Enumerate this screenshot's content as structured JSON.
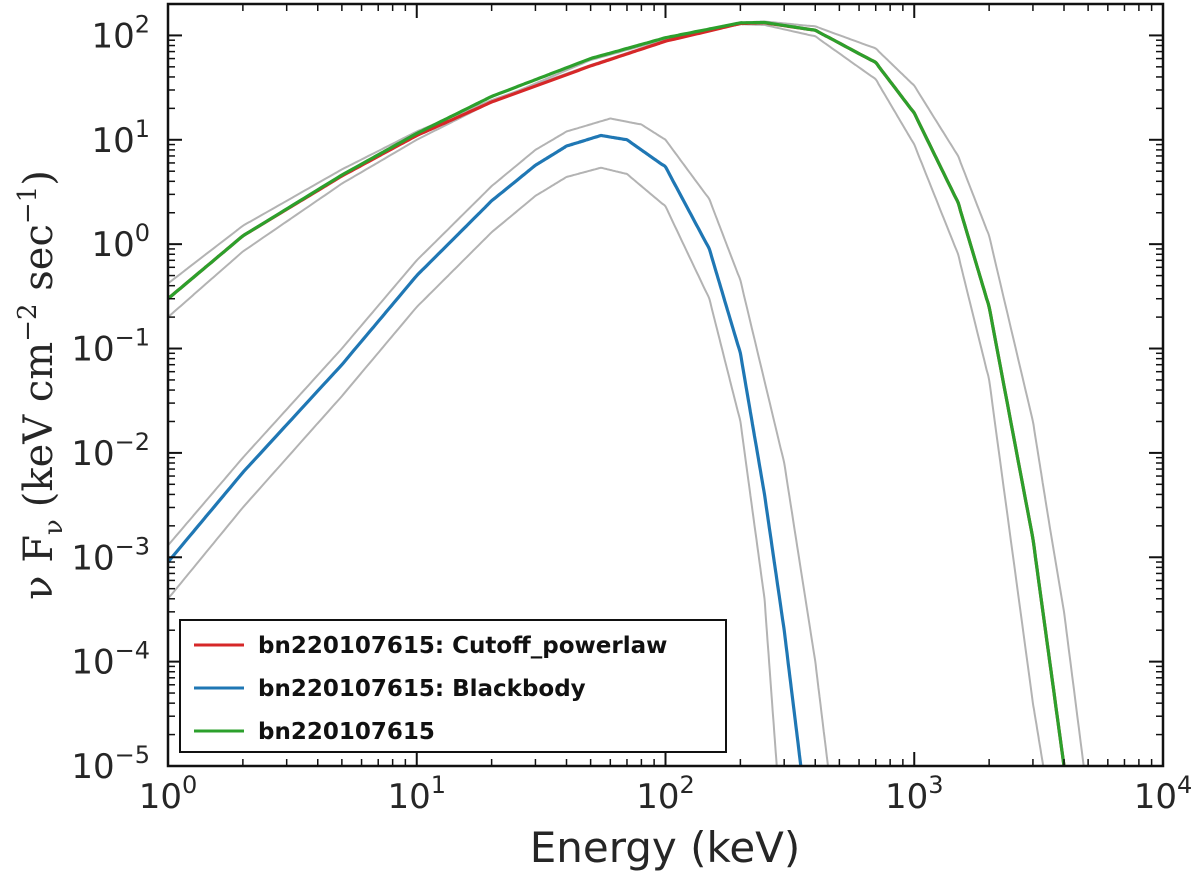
{
  "chart_data": {
    "type": "line",
    "xscale": "log",
    "yscale": "log",
    "xlim": [
      1,
      10000
    ],
    "ylim": [
      1e-05,
      200
    ],
    "xlabel": "Energy (keV)",
    "ylabel": {
      "prefix": "ν F",
      "subscript": "ν",
      "open": "(keV cm",
      "sup1": "−2",
      "mid": " sec",
      "sup2": "−1",
      "close": ")"
    },
    "x_ticks": [
      {
        "value": 1,
        "base": "10",
        "exp": "0"
      },
      {
        "value": 10,
        "base": "10",
        "exp": "1"
      },
      {
        "value": 100,
        "base": "10",
        "exp": "2"
      },
      {
        "value": 1000,
        "base": "10",
        "exp": "3"
      },
      {
        "value": 10000,
        "base": "10",
        "exp": "4"
      }
    ],
    "y_ticks": [
      {
        "value": 1e-05,
        "base": "10",
        "exp": "−5"
      },
      {
        "value": 0.0001,
        "base": "10",
        "exp": "−4"
      },
      {
        "value": 0.001,
        "base": "10",
        "exp": "−3"
      },
      {
        "value": 0.01,
        "base": "10",
        "exp": "−2"
      },
      {
        "value": 0.1,
        "base": "10",
        "exp": "−1"
      },
      {
        "value": 1,
        "base": "10",
        "exp": "0"
      },
      {
        "value": 10,
        "base": "10",
        "exp": "1"
      },
      {
        "value": 100,
        "base": "10",
        "exp": "2"
      }
    ],
    "legend_position": "bottom-left",
    "series": [
      {
        "name": "bn220107615: Cutoff_powerlaw",
        "color": "#d62728",
        "x": [
          1,
          2,
          5,
          10,
          20,
          50,
          100,
          200,
          250,
          400,
          700,
          1000,
          1500,
          2000,
          3000,
          4000
        ],
        "y": [
          0.3,
          1.2,
          4.5,
          11,
          23,
          51,
          88,
          130,
          132,
          112,
          55,
          18,
          2.5,
          0.25,
          0.0015,
          1e-05
        ]
      },
      {
        "name": "bn220107615: Blackbody",
        "color": "#1f77b4",
        "x": [
          1,
          2,
          5,
          10,
          20,
          30,
          40,
          55,
          70,
          100,
          150,
          200,
          250,
          300,
          350
        ],
        "y": [
          0.0009,
          0.0065,
          0.07,
          0.5,
          2.6,
          5.7,
          8.7,
          11,
          10,
          5.5,
          0.9,
          0.09,
          0.004,
          0.0002,
          1e-05
        ]
      },
      {
        "name": "bn220107615",
        "color": "#2ca02c",
        "x": [
          1,
          2,
          5,
          10,
          20,
          50,
          100,
          200,
          250,
          400,
          700,
          1000,
          1500,
          2000,
          3000,
          4000
        ],
        "y": [
          0.3,
          1.2,
          4.6,
          11.5,
          26,
          60,
          95,
          132,
          133,
          112,
          55,
          18,
          2.5,
          0.25,
          0.0015,
          1e-05
        ]
      }
    ],
    "uncertainty_bands": {
      "color": "#b3b3b3",
      "lines": [
        {
          "x": [
            1,
            2,
            5,
            10,
            20,
            50,
            100,
            200,
            250,
            400,
            700,
            1000,
            1500,
            2000,
            3000,
            3500,
            4000,
            4800
          ],
          "y": [
            0.42,
            1.5,
            5.2,
            12,
            24,
            52,
            90,
            133,
            136,
            122,
            75,
            33,
            7,
            1.2,
            0.02,
            0.002,
            0.0003,
            1e-05
          ]
        },
        {
          "x": [
            1,
            2,
            5,
            10,
            20,
            50,
            100,
            200,
            250,
            400,
            700,
            1000,
            1500,
            2000,
            3000,
            3300
          ],
          "y": [
            0.2,
            0.85,
            3.8,
            10,
            23,
            58,
            92,
            128,
            126,
            98,
            38,
            9,
            0.8,
            0.05,
            4e-05,
            1e-05
          ]
        },
        {
          "x": [
            1,
            2,
            5,
            10,
            20,
            30,
            40,
            60,
            80,
            100,
            150,
            200,
            300,
            400,
            450
          ],
          "y": [
            0.0013,
            0.009,
            0.1,
            0.7,
            3.6,
            8,
            12,
            16,
            14,
            10,
            2.7,
            0.45,
            0.008,
            0.0001,
            1e-05
          ]
        },
        {
          "x": [
            1,
            2,
            5,
            10,
            20,
            30,
            40,
            55,
            70,
            100,
            150,
            200,
            250,
            280
          ],
          "y": [
            0.0004,
            0.003,
            0.035,
            0.25,
            1.3,
            2.9,
            4.4,
            5.4,
            4.7,
            2.3,
            0.3,
            0.02,
            0.0004,
            1e-05
          ]
        }
      ]
    }
  }
}
